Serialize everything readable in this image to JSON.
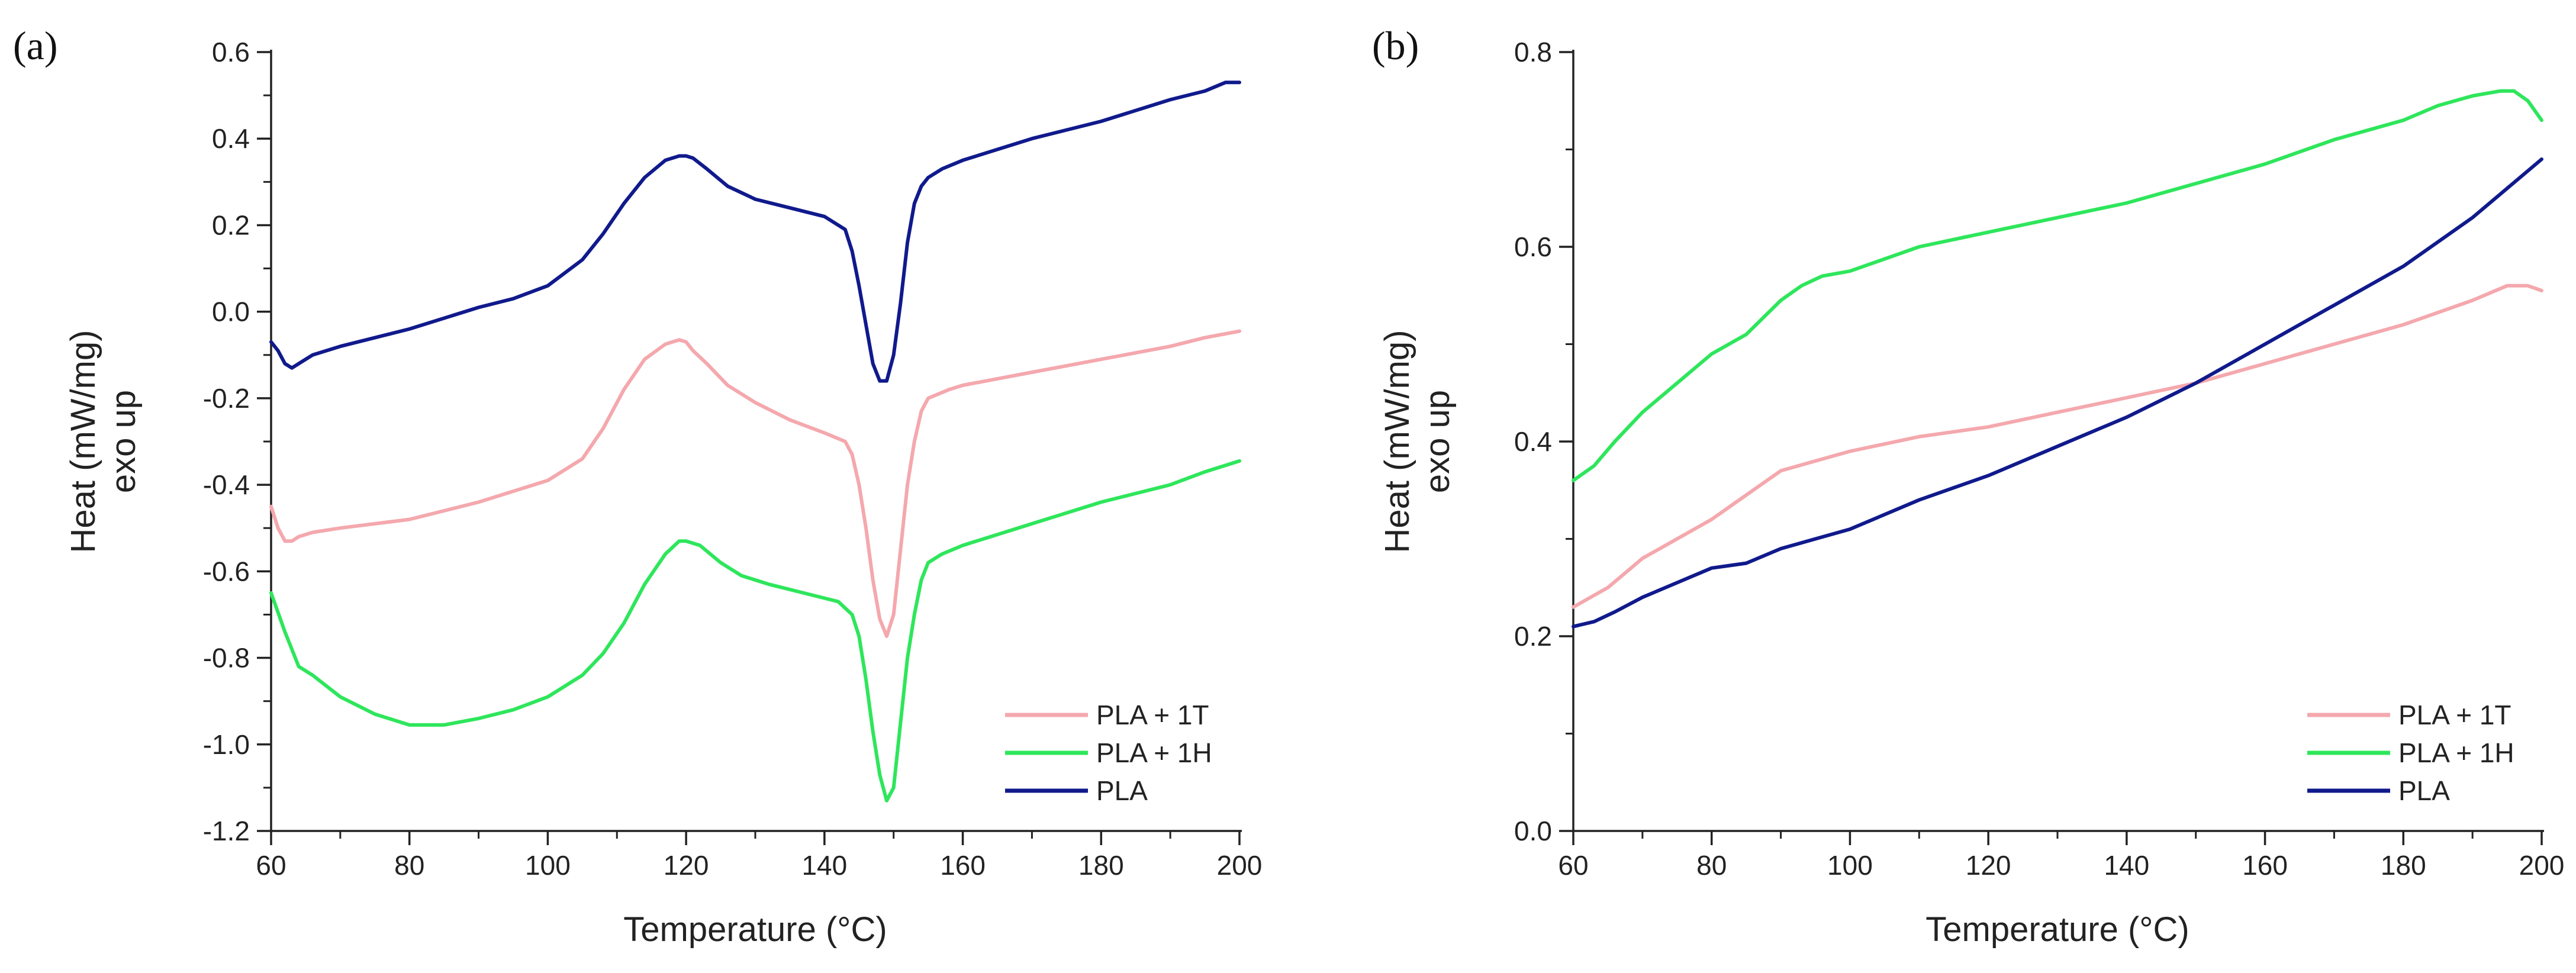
{
  "figure": {
    "panels": [
      {
        "label": "(a)"
      },
      {
        "label": "(b)"
      }
    ]
  },
  "chart_data": [
    {
      "type": "line",
      "panel_label": "(a)",
      "xlabel": "Temperature (°C)",
      "ylabel_line1": "Heat (mW/mg)",
      "ylabel_line2": "exo up",
      "xlim": [
        60,
        200
      ],
      "ylim": [
        -1.2,
        0.6
      ],
      "xticks": [
        60,
        80,
        100,
        120,
        140,
        160,
        180,
        200
      ],
      "yticks": [
        -1.2,
        -1.0,
        -0.8,
        -0.6,
        -0.4,
        -0.2,
        0.0,
        0.2,
        0.4,
        0.6
      ],
      "ytick_labels": [
        "-1.2",
        "-1.0",
        "-0.8",
        "-0.6",
        "-0.4",
        "-0.2",
        "0.0",
        "0.2",
        "0.4",
        "0.6"
      ],
      "legend_position": "bottom-right",
      "grid": false,
      "series": [
        {
          "name": "PLA + 1T",
          "color": "#f4a8ad",
          "x": [
            60,
            61,
            62,
            63,
            64,
            66,
            70,
            80,
            90,
            100,
            105,
            108,
            111,
            114,
            117,
            119,
            120,
            121,
            123,
            126,
            130,
            135,
            140,
            143,
            144,
            145,
            146,
            147,
            148,
            149,
            150,
            151,
            152,
            153,
            154,
            155,
            158,
            160,
            170,
            180,
            190,
            195,
            200
          ],
          "y": [
            -0.45,
            -0.5,
            -0.53,
            -0.53,
            -0.52,
            -0.51,
            -0.5,
            -0.48,
            -0.44,
            -0.39,
            -0.34,
            -0.27,
            -0.18,
            -0.11,
            -0.075,
            -0.065,
            -0.07,
            -0.09,
            -0.12,
            -0.17,
            -0.21,
            -0.25,
            -0.28,
            -0.3,
            -0.33,
            -0.4,
            -0.5,
            -0.62,
            -0.71,
            -0.75,
            -0.7,
            -0.55,
            -0.4,
            -0.3,
            -0.23,
            -0.2,
            -0.18,
            -0.17,
            -0.14,
            -0.11,
            -0.08,
            -0.06,
            -0.045
          ]
        },
        {
          "name": "PLA + 1H",
          "color": "#2ee65b",
          "x": [
            60,
            62,
            64,
            66,
            70,
            75,
            80,
            85,
            90,
            95,
            100,
            105,
            108,
            111,
            114,
            117,
            119,
            120,
            122,
            125,
            128,
            132,
            137,
            142,
            144,
            145,
            146,
            147,
            148,
            149,
            150,
            151,
            152,
            153,
            154,
            155,
            157,
            160,
            170,
            180,
            190,
            195,
            200
          ],
          "y": [
            -0.65,
            -0.74,
            -0.82,
            -0.84,
            -0.89,
            -0.93,
            -0.955,
            -0.955,
            -0.94,
            -0.92,
            -0.89,
            -0.84,
            -0.79,
            -0.72,
            -0.63,
            -0.56,
            -0.53,
            -0.53,
            -0.54,
            -0.58,
            -0.61,
            -0.63,
            -0.65,
            -0.67,
            -0.7,
            -0.75,
            -0.85,
            -0.97,
            -1.07,
            -1.13,
            -1.1,
            -0.95,
            -0.8,
            -0.7,
            -0.62,
            -0.58,
            -0.56,
            -0.54,
            -0.49,
            -0.44,
            -0.4,
            -0.37,
            -0.345
          ]
        },
        {
          "name": "PLA",
          "color": "#101a8c",
          "x": [
            60,
            61,
            62,
            63,
            64,
            66,
            70,
            80,
            90,
            95,
            100,
            105,
            108,
            111,
            114,
            117,
            119,
            120,
            121,
            123,
            126,
            130,
            135,
            140,
            143,
            144,
            145,
            146,
            147,
            148,
            149,
            150,
            151,
            152,
            153,
            154,
            155,
            157,
            160,
            170,
            180,
            190,
            195,
            198,
            200
          ],
          "y": [
            -0.07,
            -0.09,
            -0.12,
            -0.13,
            -0.12,
            -0.1,
            -0.08,
            -0.04,
            0.01,
            0.03,
            0.06,
            0.12,
            0.18,
            0.25,
            0.31,
            0.35,
            0.36,
            0.36,
            0.355,
            0.33,
            0.29,
            0.26,
            0.24,
            0.22,
            0.19,
            0.14,
            0.06,
            -0.03,
            -0.12,
            -0.16,
            -0.16,
            -0.1,
            0.02,
            0.16,
            0.25,
            0.29,
            0.31,
            0.33,
            0.35,
            0.4,
            0.44,
            0.49,
            0.51,
            0.53,
            0.53
          ]
        }
      ]
    },
    {
      "type": "line",
      "panel_label": "(b)",
      "xlabel": "Temperature (°C)",
      "ylabel_line1": "Heat (mW/mg)",
      "ylabel_line2": "exo up",
      "xlim": [
        60,
        200
      ],
      "ylim": [
        0.0,
        0.8
      ],
      "xticks": [
        60,
        80,
        100,
        120,
        140,
        160,
        180,
        200
      ],
      "yticks": [
        0.0,
        0.2,
        0.4,
        0.6,
        0.8
      ],
      "ytick_labels": [
        "0.0",
        "0.2",
        "0.4",
        "0.6",
        "0.8"
      ],
      "legend_position": "bottom-right",
      "grid": false,
      "series": [
        {
          "name": "PLA + 1T",
          "color": "#f4a8ad",
          "x": [
            60,
            65,
            70,
            75,
            80,
            85,
            90,
            95,
            100,
            110,
            120,
            130,
            140,
            150,
            160,
            170,
            180,
            190,
            195,
            198,
            200
          ],
          "y": [
            0.23,
            0.25,
            0.28,
            0.3,
            0.32,
            0.345,
            0.37,
            0.38,
            0.39,
            0.405,
            0.415,
            0.43,
            0.445,
            0.46,
            0.48,
            0.5,
            0.52,
            0.545,
            0.56,
            0.56,
            0.555
          ]
        },
        {
          "name": "PLA + 1H",
          "color": "#2ee65b",
          "x": [
            60,
            63,
            66,
            70,
            75,
            80,
            85,
            90,
            93,
            96,
            100,
            110,
            120,
            130,
            140,
            150,
            160,
            170,
            180,
            185,
            190,
            194,
            196,
            198,
            200
          ],
          "y": [
            0.36,
            0.375,
            0.4,
            0.43,
            0.46,
            0.49,
            0.51,
            0.545,
            0.56,
            0.57,
            0.575,
            0.6,
            0.615,
            0.63,
            0.645,
            0.665,
            0.685,
            0.71,
            0.73,
            0.745,
            0.755,
            0.76,
            0.76,
            0.75,
            0.73
          ]
        },
        {
          "name": "PLA",
          "color": "#101a8c",
          "x": [
            60,
            63,
            66,
            70,
            75,
            80,
            85,
            90,
            100,
            110,
            120,
            130,
            140,
            150,
            160,
            170,
            180,
            190,
            195,
            200
          ],
          "y": [
            0.21,
            0.215,
            0.225,
            0.24,
            0.255,
            0.27,
            0.275,
            0.29,
            0.31,
            0.34,
            0.365,
            0.395,
            0.425,
            0.46,
            0.5,
            0.54,
            0.58,
            0.63,
            0.66,
            0.69
          ]
        }
      ]
    }
  ]
}
